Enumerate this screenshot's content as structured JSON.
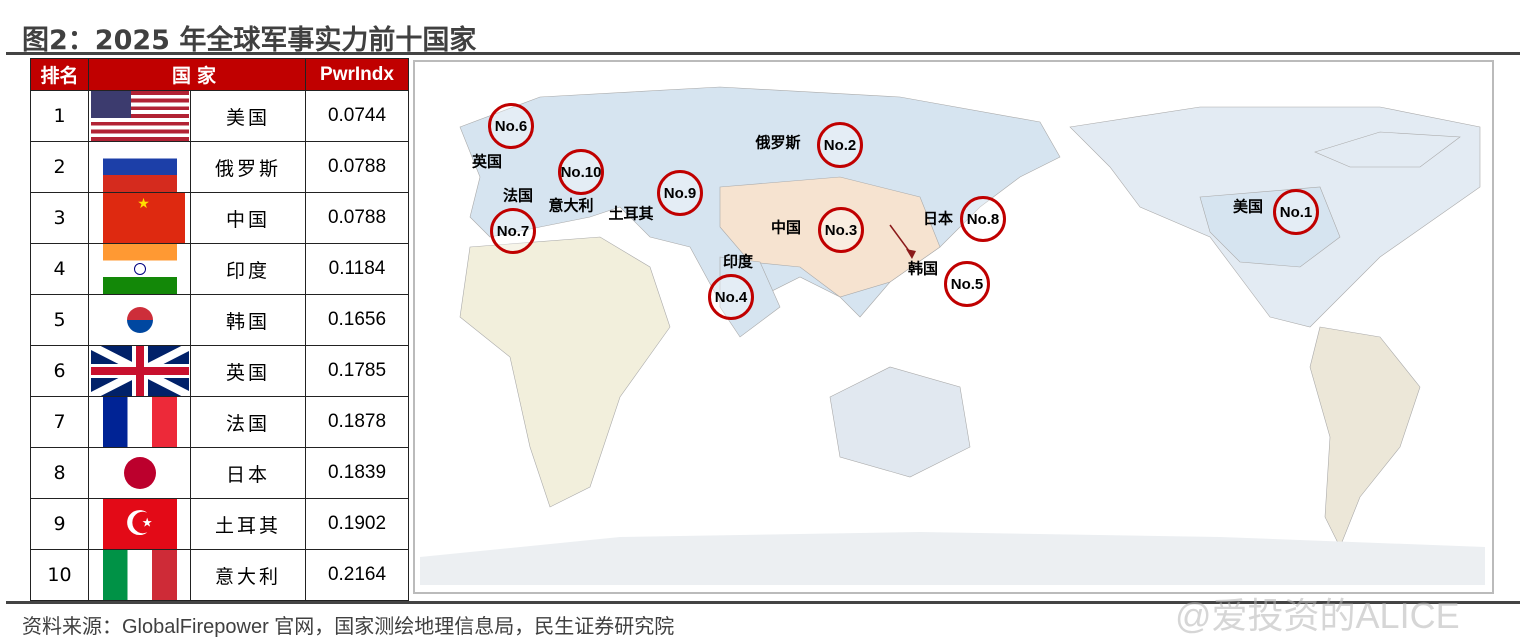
{
  "title": "图2：2025 年全球军事实力前十国家",
  "table": {
    "headers": [
      "排名",
      "国家",
      "PwrIndx"
    ],
    "rows": [
      {
        "rank": "1",
        "country": "美国",
        "flag": "us-flag",
        "value": "0.0744"
      },
      {
        "rank": "2",
        "country": "俄罗斯",
        "flag": "russia-flag",
        "value": "0.0788"
      },
      {
        "rank": "3",
        "country": "中国",
        "flag": "china-flag",
        "value": "0.0788"
      },
      {
        "rank": "4",
        "country": "印度",
        "flag": "india-flag",
        "value": "0.1184"
      },
      {
        "rank": "5",
        "country": "韩国",
        "flag": "south-korea-flag",
        "value": "0.1656"
      },
      {
        "rank": "6",
        "country": "英国",
        "flag": "uk-flag",
        "value": "0.1785"
      },
      {
        "rank": "7",
        "country": "法国",
        "flag": "france-flag",
        "value": "0.1878"
      },
      {
        "rank": "8",
        "country": "日本",
        "flag": "japan-flag",
        "value": "0.1839"
      },
      {
        "rank": "9",
        "country": "土耳其",
        "flag": "turkey-flag",
        "value": "0.1902"
      },
      {
        "rank": "10",
        "country": "意大利",
        "flag": "italy-flag",
        "value": "0.2164"
      }
    ]
  },
  "map": {
    "markers": [
      "No.1",
      "No.2",
      "No.3",
      "No.4",
      "No.5",
      "No.6",
      "No.7",
      "No.8",
      "No.9",
      "No.10"
    ],
    "labels": [
      "美国",
      "俄罗斯",
      "中国",
      "印度",
      "韩国",
      "英国",
      "法国",
      "日本",
      "土耳其",
      "意大利"
    ],
    "marker_color": "#c00000"
  },
  "source": "资料来源：GlobalFirepower 官网，国家测绘地理信息局，民生证券研究院",
  "watermark": "@爱投资的ALICE"
}
